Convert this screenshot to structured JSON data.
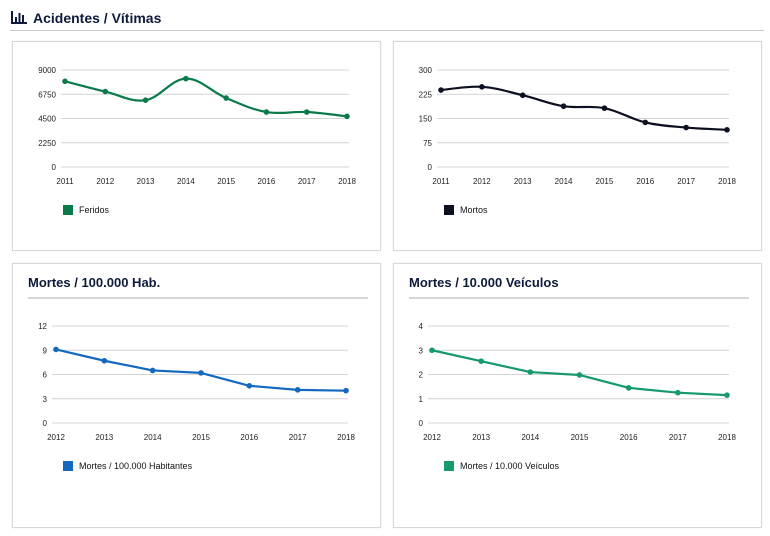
{
  "header": {
    "title": "Acidentes / Vítimas",
    "icon": "bar-chart-icon"
  },
  "charts": [
    {
      "id": "feridos",
      "title": "",
      "color": "#0b7a4b",
      "smooth": true,
      "legend": "Feridos",
      "chart_data": {
        "type": "line",
        "categories": [
          "2011",
          "2012",
          "2013",
          "2014",
          "2015",
          "2016",
          "2017",
          "2018"
        ],
        "series": [
          {
            "name": "Feridos",
            "values": [
              7950,
              7000,
              6200,
              8200,
              6400,
              5100,
              5100,
              4700
            ]
          }
        ],
        "yticks": [
          0,
          2250,
          4500,
          6750,
          9000
        ],
        "ylim": [
          0,
          9000
        ],
        "grid": true,
        "legend_position": "bottom-left"
      }
    },
    {
      "id": "mortos",
      "title": "",
      "color": "#0d1020",
      "smooth": true,
      "legend": "Mortos",
      "chart_data": {
        "type": "line",
        "categories": [
          "2011",
          "2012",
          "2013",
          "2014",
          "2015",
          "2016",
          "2017",
          "2018"
        ],
        "series": [
          {
            "name": "Mortos",
            "values": [
              238,
              248,
              222,
              188,
              182,
              138,
              122,
              115
            ]
          }
        ],
        "yticks": [
          0,
          75,
          150,
          225,
          300
        ],
        "ylim": [
          0,
          300
        ],
        "grid": true,
        "legend_position": "bottom-left"
      }
    },
    {
      "id": "hab",
      "title": "Mortes / 100.000 Hab.",
      "color": "#1468c0",
      "smooth": false,
      "legend": "Mortes / 100.000 Habitantes",
      "chart_data": {
        "type": "line",
        "categories": [
          "2012",
          "2013",
          "2014",
          "2015",
          "2016",
          "2017",
          "2018"
        ],
        "series": [
          {
            "name": "Mortes / 100.000 Habitantes",
            "values": [
              9.1,
              7.7,
              6.5,
              6.2,
              4.6,
              4.1,
              4.0
            ]
          }
        ],
        "yticks": [
          0,
          3,
          6,
          9,
          12
        ],
        "ylim": [
          0,
          12
        ],
        "grid": true,
        "legend_position": "bottom-left"
      }
    },
    {
      "id": "veic",
      "title": "Mortes / 10.000 Veículos",
      "color": "#169a6a",
      "smooth": false,
      "legend": "Mortes / 10.000 Veículos",
      "chart_data": {
        "type": "line",
        "categories": [
          "2012",
          "2013",
          "2014",
          "2015",
          "2016",
          "2017",
          "2018"
        ],
        "series": [
          {
            "name": "Mortes / 10.000 Veículos",
            "values": [
              3.0,
              2.55,
              2.1,
              1.98,
              1.45,
              1.25,
              1.15
            ]
          }
        ],
        "yticks": [
          0,
          1,
          2,
          3,
          4
        ],
        "ylim": [
          0,
          4
        ],
        "grid": true,
        "legend_position": "bottom-left"
      }
    }
  ]
}
